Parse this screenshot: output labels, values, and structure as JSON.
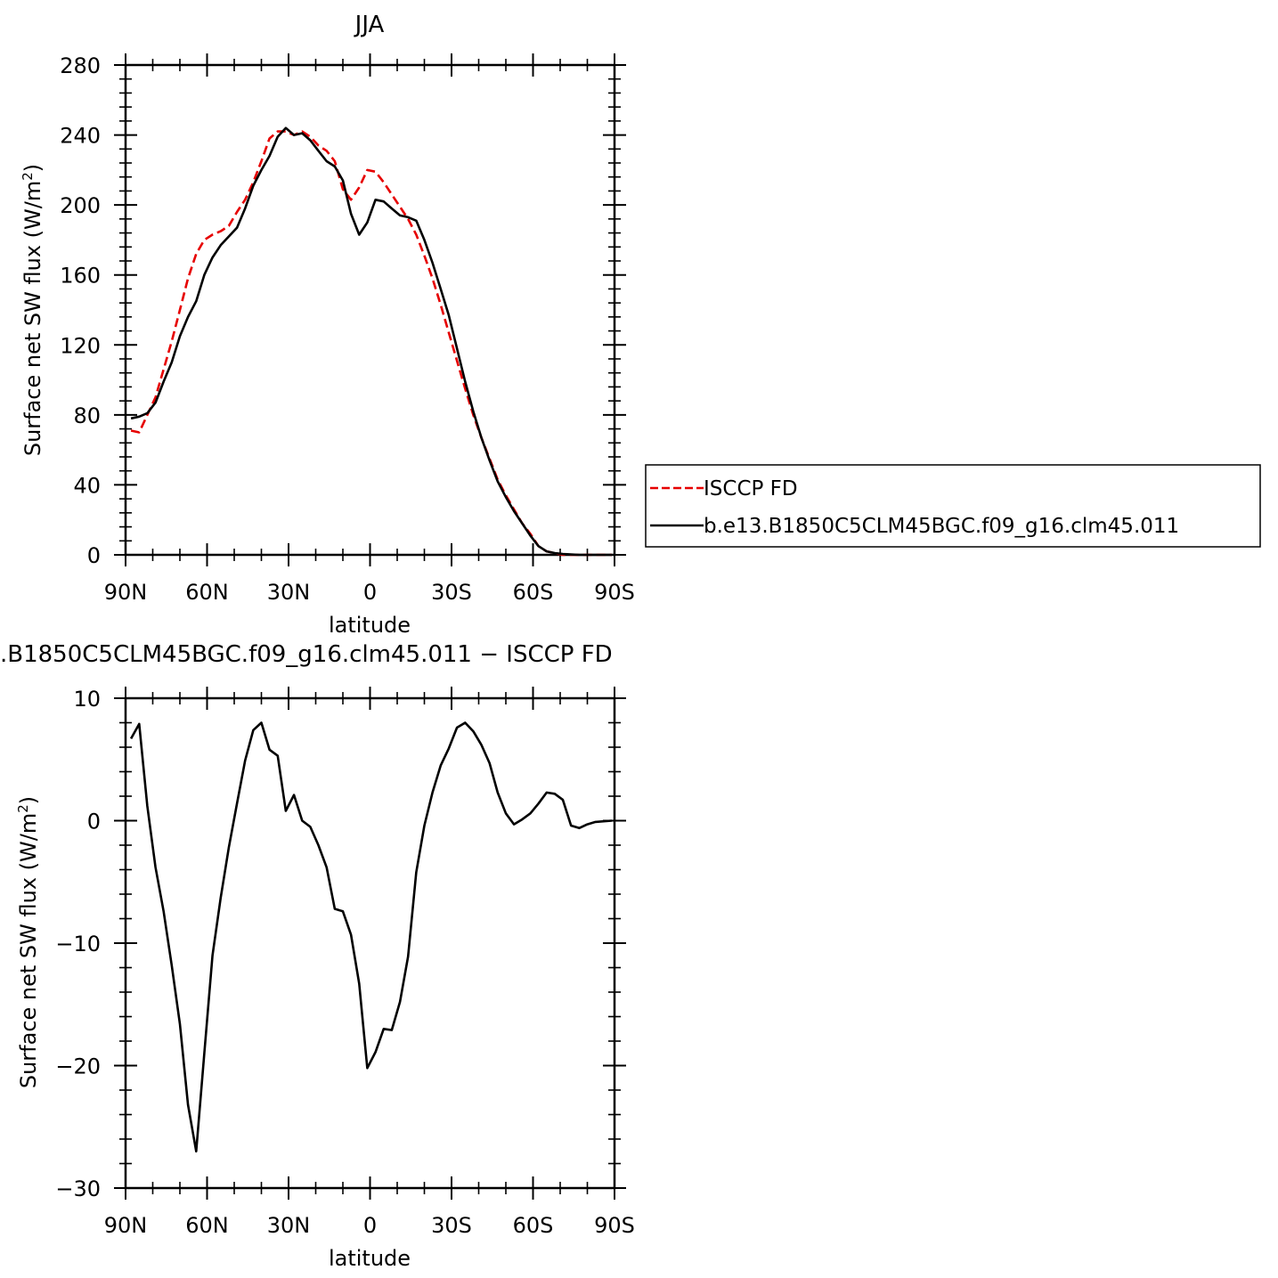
{
  "chart_data": [
    {
      "type": "line",
      "title": "JJA",
      "xlabel": "latitude",
      "ylabel": "Surface net SW flux (W/m²)",
      "ylabel_main": "Surface net SW flux (W/m",
      "ylabel_sup": "2",
      "ylabel_end": ")",
      "xlim": [
        90,
        -90
      ],
      "ylim": [
        0,
        280
      ],
      "x_ticks": [
        90,
        60,
        30,
        0,
        -30,
        -60,
        -90
      ],
      "x_tick_labels": [
        "90N",
        "60N",
        "30N",
        "0",
        "30S",
        "60S",
        "90S"
      ],
      "y_ticks": [
        0,
        40,
        80,
        120,
        160,
        200,
        240,
        280
      ],
      "y_tick_labels": [
        "0",
        "40",
        "80",
        "120",
        "160",
        "200",
        "240",
        "280"
      ],
      "legend": {
        "placement": "right",
        "entries": [
          "ISCCP FD",
          "b.e13.B1850C5CLM45BGC.f09_g16.clm45.011"
        ]
      },
      "series": [
        {
          "name": "ISCCP FD",
          "color": "#e60000",
          "dash": "dashed",
          "x": [
            88,
            85,
            82,
            79,
            76,
            73,
            70,
            67,
            64,
            61,
            58,
            55,
            52,
            49,
            46,
            43,
            40,
            37,
            34,
            31,
            28,
            25,
            22,
            19,
            16,
            13,
            10,
            7,
            4,
            1,
            -2,
            -5,
            -8,
            -11,
            -14,
            -17,
            -20,
            -23,
            -26,
            -29,
            -32,
            -35,
            -38,
            -41,
            -44,
            -47,
            -50,
            -53,
            -56,
            -59,
            -62,
            -65,
            -68,
            -71,
            -74,
            -77,
            -80,
            -83,
            -86,
            -89
          ],
          "values": [
            71,
            70,
            80,
            90,
            106,
            122,
            140,
            158,
            172,
            180,
            183,
            185,
            188,
            196,
            203,
            213,
            225,
            238,
            242,
            242,
            240,
            242,
            239,
            234,
            231,
            225,
            209,
            203,
            210,
            220,
            219,
            213,
            206,
            199,
            192,
            183,
            171,
            158,
            143,
            127,
            111,
            95,
            80,
            67,
            55,
            43,
            34,
            26,
            18,
            12,
            5,
            2,
            1,
            0,
            0,
            0,
            0,
            0,
            0,
            0
          ]
        },
        {
          "name": "b.e13.B1850C5CLM45BGC.f09_g16.clm45.011",
          "color": "#000000",
          "dash": "solid",
          "x": [
            88,
            85,
            82,
            79,
            76,
            73,
            70,
            67,
            64,
            61,
            58,
            55,
            52,
            49,
            46,
            43,
            40,
            37,
            34,
            31,
            28,
            25,
            22,
            19,
            16,
            13,
            10,
            7,
            4,
            1,
            -2,
            -5,
            -8,
            -11,
            -14,
            -17,
            -20,
            -23,
            -26,
            -29,
            -32,
            -35,
            -38,
            -41,
            -44,
            -47,
            -50,
            -53,
            -56,
            -59,
            -62,
            -65,
            -68,
            -71,
            -74,
            -77,
            -80,
            -83,
            -86,
            -89
          ],
          "values": [
            78,
            79,
            81,
            87,
            99,
            110,
            125,
            136,
            145,
            160,
            170,
            177,
            182,
            187,
            198,
            211,
            220,
            228,
            239,
            244,
            240,
            241,
            237,
            231,
            225,
            222,
            214,
            195,
            183,
            190,
            203,
            202,
            198,
            194,
            193,
            191,
            180,
            167,
            152,
            137,
            118,
            99,
            82,
            67,
            54,
            42,
            33,
            25,
            18,
            11,
            5,
            2,
            1,
            0.5,
            0.2,
            0,
            0,
            0,
            0,
            0
          ]
        }
      ]
    },
    {
      "type": "line",
      "title": ".B1850C5CLM45BGC.f09_g16.clm45.011 − ISCCP FD",
      "xlabel": "latitude",
      "ylabel": "Surface net SW flux (W/m²)",
      "ylabel_main": "Surface net SW flux (W/m",
      "ylabel_sup": "2",
      "ylabel_end": ")",
      "xlim": [
        90,
        -90
      ],
      "ylim": [
        -30,
        10
      ],
      "x_ticks": [
        90,
        60,
        30,
        0,
        -30,
        -60,
        -90
      ],
      "x_tick_labels": [
        "90N",
        "60N",
        "30N",
        "0",
        "30S",
        "60S",
        "90S"
      ],
      "y_ticks": [
        -30,
        -20,
        -10,
        0,
        10
      ],
      "y_tick_labels": [
        "−30",
        "−20",
        "−10",
        "0",
        "10"
      ],
      "series": [
        {
          "color": "#000000",
          "dash": "solid",
          "x": [
            88,
            85,
            82,
            79,
            76,
            73,
            70,
            67,
            64,
            61,
            58,
            55,
            52,
            49,
            46,
            43,
            40,
            37,
            34,
            31,
            28,
            25,
            22,
            19,
            16,
            13,
            10,
            7,
            4,
            1,
            -2,
            -5,
            -8,
            -11,
            -14,
            -17,
            -20,
            -23,
            -26,
            -29,
            -32,
            -35,
            -38,
            -41,
            -44,
            -47,
            -50,
            -53,
            -56,
            -59,
            -62,
            -65,
            -68,
            -71,
            -74,
            -77,
            -80,
            -83,
            -86,
            -89
          ],
          "values": [
            6.7,
            7.9,
            1.2,
            -3.8,
            -7.4,
            -11.8,
            -16.6,
            -23.2,
            -27.0,
            -19.0,
            -11.0,
            -6.3,
            -2.2,
            1.4,
            4.9,
            7.4,
            8.0,
            5.8,
            5.3,
            0.8,
            2.1,
            0.0,
            -0.5,
            -2.0,
            -3.8,
            -7.2,
            -7.4,
            -9.3,
            -13.3,
            -20.2,
            -18.9,
            -17.0,
            -17.1,
            -14.8,
            -11.1,
            -4.2,
            -0.4,
            2.3,
            4.5,
            5.9,
            7.6,
            8.0,
            7.3,
            6.2,
            4.7,
            2.3,
            0.6,
            -0.3,
            0.1,
            0.6,
            1.4,
            2.3,
            2.2,
            1.7,
            -0.4,
            -0.6,
            -0.3,
            -0.1,
            -0.05,
            0.0
          ]
        }
      ]
    }
  ]
}
